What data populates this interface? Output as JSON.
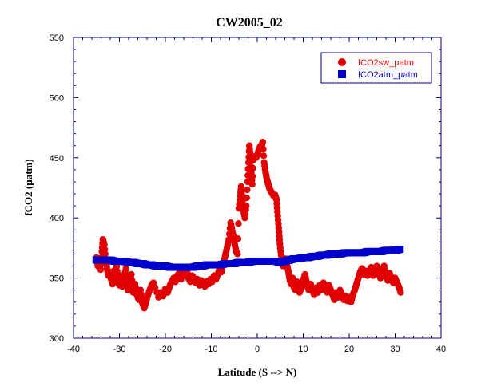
{
  "chart_data": {
    "type": "scatter",
    "title": "CW2005_02",
    "xlabel": "Latitude (S --> N)",
    "ylabel": "fCO2 (µatm)",
    "xlim": [
      -40,
      40
    ],
    "ylim": [
      300,
      550
    ],
    "xticks": [
      -40,
      -30,
      -20,
      -10,
      0,
      10,
      20,
      30,
      40
    ],
    "yticks": [
      300,
      350,
      400,
      450,
      500,
      550
    ],
    "grid": false,
    "legend_position": "top-right",
    "series": [
      {
        "name": "fCO2sw_µatm",
        "color": "#e00000",
        "marker": "circle",
        "points": [
          [
            -35,
            367
          ],
          [
            -34.7,
            360
          ],
          [
            -34.4,
            366
          ],
          [
            -34.1,
            357
          ],
          [
            -33.8,
            372
          ],
          [
            -33.6,
            382
          ],
          [
            -33.3,
            378
          ],
          [
            -33,
            366
          ],
          [
            -32.7,
            358
          ],
          [
            -32.4,
            352
          ],
          [
            -32.1,
            355
          ],
          [
            -31.8,
            349
          ],
          [
            -31.5,
            345
          ],
          [
            -31.2,
            356
          ],
          [
            -30.9,
            352
          ],
          [
            -30.6,
            360
          ],
          [
            -30.3,
            347
          ],
          [
            -30,
            344
          ],
          [
            -29.7,
            352
          ],
          [
            -29.4,
            343
          ],
          [
            -29,
            350
          ],
          [
            -28.6,
            358
          ],
          [
            -28.2,
            340
          ],
          [
            -27.8,
            345
          ],
          [
            -27.4,
            353
          ],
          [
            -27,
            338
          ],
          [
            -26.6,
            345
          ],
          [
            -26.2,
            336
          ],
          [
            -25.8,
            332
          ],
          [
            -25.4,
            340
          ],
          [
            -25,
            329
          ],
          [
            -24.6,
            325
          ],
          [
            -24.2,
            330
          ],
          [
            -23.8,
            336
          ],
          [
            -23.4,
            340
          ],
          [
            -23,
            344
          ],
          [
            -22.6,
            346
          ],
          [
            -21.5,
            334
          ],
          [
            -21,
            338
          ],
          [
            -20.5,
            335
          ],
          [
            -20,
            341
          ],
          [
            -19.5,
            338
          ],
          [
            -19,
            344
          ],
          [
            -18.6,
            347
          ],
          [
            -18.2,
            350
          ],
          [
            -17.8,
            347
          ],
          [
            -17.4,
            352
          ],
          [
            -17,
            354
          ],
          [
            -16.6,
            349
          ],
          [
            -16.2,
            356
          ],
          [
            -15.8,
            352
          ],
          [
            -15.4,
            358
          ],
          [
            -15,
            350
          ],
          [
            -14.6,
            347
          ],
          [
            -14.2,
            352
          ],
          [
            -13.8,
            350
          ],
          [
            -13.4,
            346
          ],
          [
            -13,
            349
          ],
          [
            -12.6,
            344
          ],
          [
            -12.2,
            348
          ],
          [
            -11.8,
            346
          ],
          [
            -11.4,
            343
          ],
          [
            -11,
            347
          ],
          [
            -10.6,
            345
          ],
          [
            -10.2,
            349
          ],
          [
            -9.8,
            347
          ],
          [
            -9.4,
            352
          ],
          [
            -9,
            349
          ],
          [
            -8.6,
            353
          ],
          [
            -8.2,
            358
          ],
          [
            -7.8,
            355
          ],
          [
            -7.4,
            362
          ],
          [
            -7,
            368
          ],
          [
            -6.6,
            375
          ],
          [
            -6.2,
            382
          ],
          [
            -5.8,
            396
          ],
          [
            -5.5,
            390
          ],
          [
            -5.2,
            385
          ],
          [
            -4.9,
            378
          ],
          [
            -4.6,
            372
          ],
          [
            -4.3,
            370
          ],
          [
            -4,
            408
          ],
          [
            -3.7,
            418
          ],
          [
            -3.5,
            426
          ],
          [
            -3.3,
            416
          ],
          [
            -3,
            406
          ],
          [
            -2.7,
            400
          ],
          [
            -2.4,
            410
          ],
          [
            -2.1,
            430
          ],
          [
            -1.9,
            446
          ],
          [
            -1.7,
            460
          ],
          [
            -1.5,
            452
          ],
          [
            -1.3,
            438
          ],
          [
            -1.1,
            428
          ],
          [
            -0.9,
            448
          ],
          [
            -0.6,
            451
          ],
          [
            -0.3,
            450
          ],
          [
            0,
            452
          ],
          [
            0.3,
            456
          ],
          [
            0.6,
            459
          ],
          [
            0.9,
            460
          ],
          [
            1.2,
            463
          ],
          [
            1.5,
            446
          ],
          [
            1.8,
            438
          ],
          [
            2.1,
            432
          ],
          [
            2.4,
            428
          ],
          [
            2.7,
            424
          ],
          [
            3,
            422
          ],
          [
            3.3,
            420
          ],
          [
            3.6,
            418
          ],
          [
            3.9,
            419
          ],
          [
            4.2,
            415
          ],
          [
            4.4,
            405
          ],
          [
            4.6,
            395
          ],
          [
            4.8,
            385
          ],
          [
            5,
            375
          ],
          [
            5.3,
            366
          ],
          [
            5.6,
            360
          ],
          [
            5.9,
            363
          ],
          [
            6.2,
            366
          ],
          [
            6.5,
            360
          ],
          [
            6.8,
            355
          ],
          [
            7.1,
            348
          ],
          [
            7.4,
            345
          ],
          [
            7.7,
            350
          ],
          [
            8,
            342
          ],
          [
            8.3,
            340
          ],
          [
            8.6,
            347
          ],
          [
            8.9,
            345
          ],
          [
            9.2,
            338
          ],
          [
            9.6,
            342
          ],
          [
            10,
            348
          ],
          [
            10.4,
            353
          ],
          [
            10.8,
            345
          ],
          [
            11.2,
            340
          ],
          [
            11.6,
            345
          ],
          [
            12,
            340
          ],
          [
            12.4,
            336
          ],
          [
            12.8,
            342
          ],
          [
            13.2,
            338
          ],
          [
            13.6,
            344
          ],
          [
            14,
            340
          ],
          [
            14.4,
            346
          ],
          [
            14.8,
            342
          ],
          [
            15.2,
            338
          ],
          [
            15.6,
            344
          ],
          [
            16,
            340
          ],
          [
            16.4,
            336
          ],
          [
            16.8,
            332
          ],
          [
            17.2,
            338
          ],
          [
            17.6,
            334
          ],
          [
            18,
            340
          ],
          [
            18.4,
            336
          ],
          [
            18.8,
            332
          ],
          [
            19.2,
            335
          ],
          [
            19.6,
            331
          ],
          [
            20,
            334
          ],
          [
            20.4,
            330
          ],
          [
            20.8,
            336
          ],
          [
            21.2,
            340
          ],
          [
            21.6,
            345
          ],
          [
            22,
            350
          ],
          [
            22.4,
            355
          ],
          [
            22.8,
            358
          ],
          [
            23.2,
            353
          ],
          [
            23.6,
            356
          ],
          [
            24,
            352
          ],
          [
            24.4,
            355
          ],
          [
            24.8,
            359
          ],
          [
            25.2,
            352
          ],
          [
            25.6,
            356
          ],
          [
            26,
            360
          ],
          [
            26.4,
            354
          ],
          [
            26.8,
            350
          ],
          [
            27.2,
            356
          ],
          [
            27.6,
            360
          ],
          [
            28,
            352
          ],
          [
            28.4,
            348
          ],
          [
            28.8,
            354
          ],
          [
            29.2,
            350
          ],
          [
            29.6,
            346
          ],
          [
            30,
            350
          ],
          [
            30.4,
            346
          ],
          [
            30.8,
            343
          ],
          [
            31.2,
            338
          ]
        ]
      },
      {
        "name": "fCO2atm_µatm",
        "color": "#0000cc",
        "marker": "square",
        "points": [
          [
            -35,
            365
          ],
          [
            -34,
            365
          ],
          [
            -33,
            365
          ],
          [
            -32,
            365
          ],
          [
            -31,
            364
          ],
          [
            -30,
            364
          ],
          [
            -29,
            364
          ],
          [
            -28,
            363
          ],
          [
            -27,
            363
          ],
          [
            -26,
            362
          ],
          [
            -25,
            362
          ],
          [
            -24,
            361
          ],
          [
            -23,
            361
          ],
          [
            -22,
            360
          ],
          [
            -21,
            360
          ],
          [
            -20,
            360
          ],
          [
            -19,
            359
          ],
          [
            -18,
            359
          ],
          [
            -17,
            359
          ],
          [
            -16,
            359
          ],
          [
            -15,
            359
          ],
          [
            -14,
            359
          ],
          [
            -13,
            360
          ],
          [
            -12,
            360
          ],
          [
            -11,
            361
          ],
          [
            -10,
            361
          ],
          [
            -9,
            361
          ],
          [
            -8,
            361
          ],
          [
            -7,
            362
          ],
          [
            -6,
            362
          ],
          [
            -5,
            362
          ],
          [
            -4,
            363
          ],
          [
            -3,
            363
          ],
          [
            -2,
            363
          ],
          [
            -1,
            364
          ],
          [
            0,
            364
          ],
          [
            1,
            364
          ],
          [
            2,
            364
          ],
          [
            3,
            364
          ],
          [
            4,
            364
          ],
          [
            5,
            363
          ],
          [
            6,
            364
          ],
          [
            7,
            365
          ],
          [
            8,
            366
          ],
          [
            9,
            366
          ],
          [
            10,
            367
          ],
          [
            11,
            367
          ],
          [
            12,
            368
          ],
          [
            13,
            368
          ],
          [
            14,
            369
          ],
          [
            15,
            369
          ],
          [
            16,
            370
          ],
          [
            17,
            370
          ],
          [
            18,
            370
          ],
          [
            19,
            371
          ],
          [
            20,
            371
          ],
          [
            21,
            371
          ],
          [
            22,
            371
          ],
          [
            23,
            371
          ],
          [
            24,
            372
          ],
          [
            25,
            372
          ],
          [
            26,
            372
          ],
          [
            27,
            372
          ],
          [
            28,
            373
          ],
          [
            29,
            373
          ],
          [
            30,
            373
          ],
          [
            31,
            374
          ]
        ]
      }
    ]
  }
}
